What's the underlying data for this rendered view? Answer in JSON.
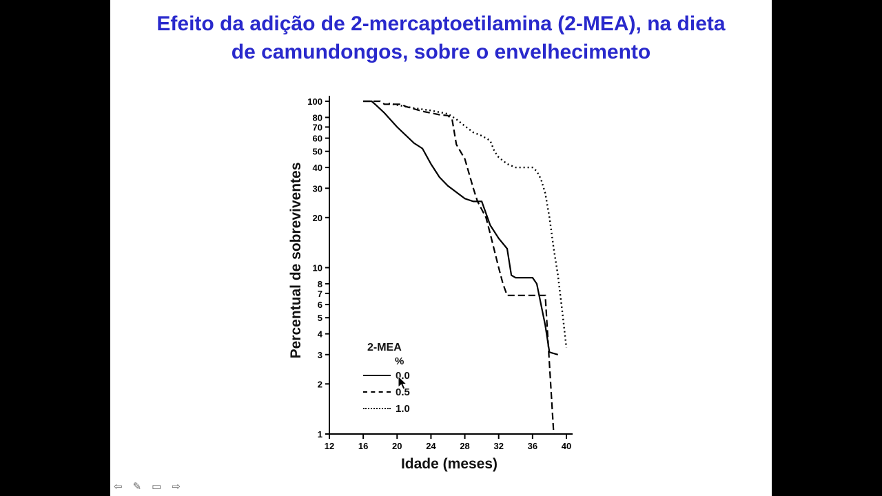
{
  "slide": {
    "title_line1": "Efeito da adição de 2-mercaptoetilamina (2-MEA), na dieta",
    "title_line2": "de camundongos, sobre o envelhecimento",
    "title_color": "#2929cc",
    "background": "#ffffff",
    "letterbox_color": "#000000"
  },
  "chart_data": {
    "type": "line",
    "y_scale": "log",
    "title": "",
    "xlabel": "Idade (meses)",
    "ylabel": "Percentual de sobreviventes",
    "xlim": [
      12,
      40
    ],
    "ylim": [
      1,
      100
    ],
    "x_ticks": [
      12,
      16,
      20,
      24,
      28,
      32,
      36,
      40
    ],
    "y_ticks": [
      100,
      80,
      70,
      60,
      50,
      40,
      30,
      20,
      10,
      8,
      7,
      6,
      5,
      4,
      3,
      2,
      1
    ],
    "grid": false,
    "line_color": "#000000",
    "legend": {
      "title": "2-MEA",
      "unit": "%",
      "position": "lower-left-inside",
      "entries": [
        {
          "label": "0.0",
          "style": "solid"
        },
        {
          "label": "0.5",
          "style": "dashed"
        },
        {
          "label": "1.0",
          "style": "dotted"
        }
      ]
    },
    "series": [
      {
        "name": "0.0",
        "style": "solid",
        "points": [
          [
            16,
            100
          ],
          [
            17,
            100
          ],
          [
            17.5,
            95
          ],
          [
            18.5,
            85
          ],
          [
            20,
            70
          ],
          [
            22,
            56
          ],
          [
            23,
            52
          ],
          [
            24,
            42
          ],
          [
            25,
            35
          ],
          [
            26,
            31
          ],
          [
            28,
            26
          ],
          [
            29,
            25
          ],
          [
            30,
            25
          ],
          [
            31,
            18
          ],
          [
            32,
            15
          ],
          [
            33,
            13
          ],
          [
            33.5,
            9
          ],
          [
            34,
            8.7
          ],
          [
            36,
            8.7
          ],
          [
            36.5,
            8
          ],
          [
            37.5,
            4.5
          ],
          [
            38,
            3.1
          ],
          [
            39,
            3
          ]
        ]
      },
      {
        "name": "0.5",
        "style": "dashed",
        "points": [
          [
            16,
            100
          ],
          [
            18,
            100
          ],
          [
            18.5,
            96
          ],
          [
            20.5,
            96
          ],
          [
            21,
            93
          ],
          [
            22,
            90
          ],
          [
            23,
            87
          ],
          [
            24,
            85
          ],
          [
            25,
            83
          ],
          [
            26,
            82
          ],
          [
            26.5,
            78
          ],
          [
            27,
            55
          ],
          [
            28,
            45
          ],
          [
            29,
            30
          ],
          [
            29.5,
            25
          ],
          [
            30.5,
            20
          ],
          [
            31,
            16
          ],
          [
            32,
            10
          ],
          [
            32.5,
            8
          ],
          [
            33,
            6.8
          ],
          [
            37.5,
            6.8
          ],
          [
            38.5,
            1
          ]
        ]
      },
      {
        "name": "1.0",
        "style": "dotted",
        "points": [
          [
            19,
            97
          ],
          [
            20,
            95
          ],
          [
            22,
            91
          ],
          [
            24,
            88
          ],
          [
            25,
            86
          ],
          [
            26,
            84
          ],
          [
            27,
            78
          ],
          [
            28,
            71
          ],
          [
            29,
            65
          ],
          [
            30,
            62
          ],
          [
            31,
            58
          ],
          [
            31.5,
            50
          ],
          [
            32,
            46
          ],
          [
            33,
            42
          ],
          [
            34,
            40
          ],
          [
            36,
            40
          ],
          [
            36.5,
            38
          ],
          [
            37,
            34
          ],
          [
            37.5,
            28
          ],
          [
            38,
            20
          ],
          [
            38.5,
            13
          ],
          [
            39,
            9
          ],
          [
            39.5,
            5.5
          ],
          [
            40,
            3.3
          ]
        ]
      }
    ]
  },
  "presenter_controls": {
    "back_glyph": "⇦",
    "pen_glyph": "✎",
    "menu_glyph": "▭",
    "forward_glyph": "⇨"
  }
}
